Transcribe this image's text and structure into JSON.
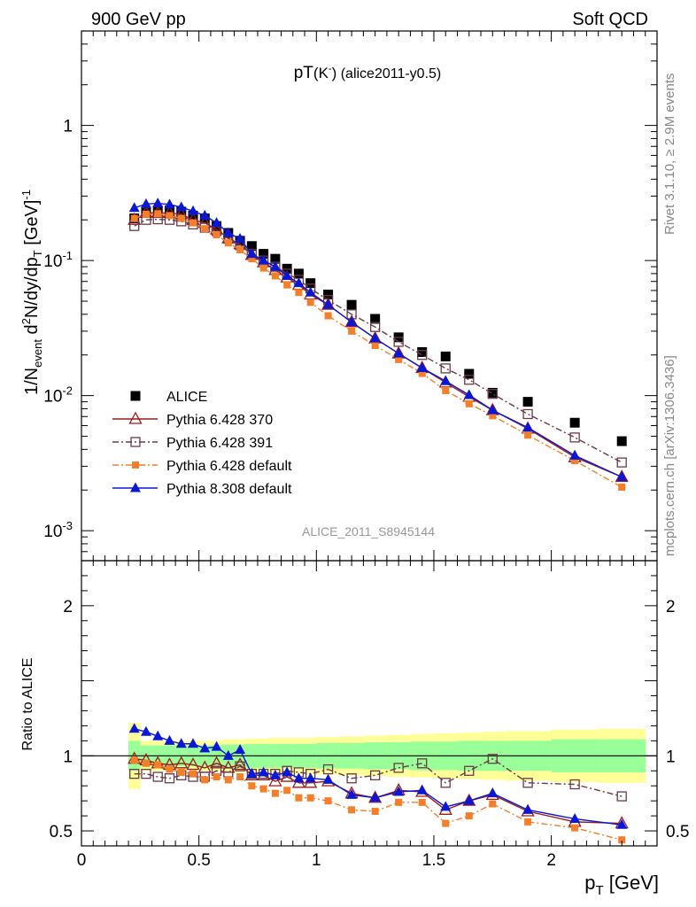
{
  "header": {
    "left": "900 GeV pp",
    "right": "Soft QCD",
    "plot_title": "pT(K-) (alice2011-y0.5)"
  },
  "side_text": {
    "rivet": "Rivet 3.1.10, ≥ 2.9M events",
    "mcplots": "mcplots.cern.ch [arXiv:1306.3436]"
  },
  "watermark": "ALICE_2011_S8945144",
  "colors": {
    "ALICE": "#000000",
    "p370": "#9e1b1b",
    "p391": "#6b3a4a",
    "p6def": "#f47f2a",
    "p8def": "#0a18d6",
    "band_inner": "#99ff99",
    "band_outer": "#ffff99"
  },
  "chart_data": [
    {
      "type": "scatter",
      "title": "pT(K-) (alice2011-y0.5)",
      "xlabel": "pT [GeV]",
      "ylabel": "1/Nevent d2N/dy/dpT [GeV]-1",
      "yscale": "log",
      "xlim": [
        0,
        2.45
      ],
      "ylim": [
        0.0006,
        5
      ],
      "y_ticks": [
        "10^-3",
        "10^-2",
        "10^-1",
        "1"
      ],
      "legend_position": "bottom-left",
      "x": [
        0.225,
        0.275,
        0.325,
        0.375,
        0.425,
        0.475,
        0.525,
        0.575,
        0.625,
        0.675,
        0.725,
        0.775,
        0.825,
        0.875,
        0.925,
        0.975,
        1.05,
        1.15,
        1.25,
        1.35,
        1.45,
        1.55,
        1.65,
        1.75,
        1.9,
        2.1,
        2.3
      ],
      "series": [
        {
          "name": "ALICE",
          "key": "ALICE",
          "marker": "square-filled",
          "line": "none",
          "values": [
            0.205,
            0.23,
            0.235,
            0.235,
            0.23,
            0.215,
            0.205,
            0.18,
            0.16,
            0.14,
            0.128,
            0.112,
            0.103,
            0.087,
            0.08,
            0.068,
            0.056,
            0.047,
            0.037,
            0.027,
            0.021,
            0.0195,
            0.0145,
            0.0105,
            0.009,
            0.0063,
            0.0046
          ]
        },
        {
          "name": "Pythia 6.428 370",
          "key": "p370",
          "marker": "triangle-open",
          "line": "solid",
          "values": [
            0.2,
            0.225,
            0.225,
            0.225,
            0.22,
            0.2,
            0.19,
            0.17,
            0.146,
            0.132,
            0.11,
            0.097,
            0.085,
            0.075,
            0.066,
            0.056,
            0.047,
            0.035,
            0.0265,
            0.0205,
            0.016,
            0.0125,
            0.0098,
            0.0078,
            0.0057,
            0.0035,
            0.0025
          ]
        },
        {
          "name": "Pythia 6.428 391",
          "key": "p391",
          "marker": "square-open",
          "line": "dashdot",
          "values": [
            0.18,
            0.2,
            0.202,
            0.2,
            0.195,
            0.185,
            0.175,
            0.165,
            0.145,
            0.13,
            0.112,
            0.1,
            0.09,
            0.08,
            0.072,
            0.062,
            0.051,
            0.04,
            0.0322,
            0.025,
            0.02,
            0.0159,
            0.0131,
            0.0103,
            0.0073,
            0.0049,
            0.0032
          ]
        },
        {
          "name": "Pythia 6.428 default",
          "key": "p6def",
          "marker": "square-filled-small",
          "line": "dashdot",
          "values": [
            0.205,
            0.22,
            0.222,
            0.215,
            0.205,
            0.19,
            0.172,
            0.155,
            0.135,
            0.12,
            0.103,
            0.088,
            0.077,
            0.066,
            0.058,
            0.049,
            0.039,
            0.03,
            0.0235,
            0.0185,
            0.0146,
            0.0109,
            0.0087,
            0.0071,
            0.0051,
            0.0033,
            0.0021
          ]
        },
        {
          "name": "Pythia 8.308 default",
          "key": "p8def",
          "marker": "triangle-filled",
          "line": "solid",
          "values": [
            0.245,
            0.262,
            0.265,
            0.26,
            0.248,
            0.232,
            0.215,
            0.19,
            0.16,
            0.145,
            0.112,
            0.1,
            0.09,
            0.077,
            0.068,
            0.058,
            0.047,
            0.035,
            0.0265,
            0.0205,
            0.016,
            0.0128,
            0.0101,
            0.0078,
            0.0058,
            0.0036,
            0.0025
          ]
        }
      ]
    },
    {
      "type": "scatter",
      "xlabel": "pT [GeV]",
      "ylabel": "Ratio to ALICE",
      "xlim": [
        0,
        2.45
      ],
      "ylim": [
        0.4,
        2.3
      ],
      "x_ticks": [
        0,
        0.5,
        1,
        1.5,
        2
      ],
      "y_ticks": [
        0.5,
        1,
        2
      ],
      "reference_line": 1,
      "bands": {
        "x_edges": [
          0.2,
          0.25,
          0.3,
          0.35,
          0.4,
          0.45,
          0.5,
          0.55,
          0.6,
          0.65,
          0.7,
          0.75,
          0.8,
          0.85,
          0.9,
          0.95,
          1.0,
          1.1,
          1.2,
          1.3,
          1.4,
          1.5,
          1.6,
          1.7,
          1.8,
          2.0,
          2.2,
          2.4
        ],
        "inner": [
          0.1,
          0.07,
          0.07,
          0.07,
          0.07,
          0.07,
          0.07,
          0.07,
          0.075,
          0.075,
          0.08,
          0.08,
          0.08,
          0.08,
          0.08,
          0.08,
          0.085,
          0.085,
          0.09,
          0.09,
          0.095,
          0.095,
          0.1,
          0.1,
          0.1,
          0.11,
          0.11
        ],
        "outer": [
          0.22,
          0.1,
          0.1,
          0.1,
          0.1,
          0.1,
          0.1,
          0.1,
          0.11,
          0.11,
          0.115,
          0.115,
          0.12,
          0.12,
          0.12,
          0.12,
          0.125,
          0.13,
          0.135,
          0.14,
          0.145,
          0.15,
          0.155,
          0.16,
          0.165,
          0.175,
          0.18
        ]
      },
      "series": [
        {
          "name": "Pythia 6.428 370",
          "key": "p370",
          "marker": "triangle-open",
          "line": "solid",
          "values": [
            0.98,
            0.97,
            0.95,
            0.94,
            0.95,
            0.94,
            0.92,
            0.95,
            0.92,
            0.94,
            0.87,
            0.87,
            0.83,
            0.86,
            0.82,
            0.82,
            0.83,
            0.75,
            0.72,
            0.77,
            0.76,
            0.64,
            0.7,
            0.74,
            0.63,
            0.56,
            0.55
          ]
        },
        {
          "name": "Pythia 6.428 391",
          "key": "p391",
          "marker": "square-open",
          "line": "dashdot",
          "values": [
            0.88,
            0.88,
            0.86,
            0.85,
            0.87,
            0.86,
            0.86,
            0.9,
            0.89,
            0.93,
            0.88,
            0.88,
            0.88,
            0.9,
            0.89,
            0.88,
            0.91,
            0.85,
            0.87,
            0.92,
            0.95,
            0.82,
            0.9,
            0.98,
            0.82,
            0.81,
            0.73
          ]
        },
        {
          "name": "Pythia 6.428 default",
          "key": "p6def",
          "marker": "square-filled-small",
          "line": "dashdot",
          "values": [
            0.97,
            0.95,
            0.94,
            0.91,
            0.89,
            0.88,
            0.84,
            0.86,
            0.84,
            0.86,
            0.8,
            0.78,
            0.75,
            0.77,
            0.72,
            0.72,
            0.7,
            0.64,
            0.63,
            0.69,
            0.69,
            0.55,
            0.6,
            0.68,
            0.56,
            0.52,
            0.44
          ]
        },
        {
          "name": "Pythia 8.308 default",
          "key": "p8def",
          "marker": "triangle-filled",
          "line": "solid",
          "values": [
            1.18,
            1.16,
            1.13,
            1.1,
            1.08,
            1.08,
            1.05,
            1.06,
            1.0,
            1.04,
            0.88,
            0.89,
            0.87,
            0.89,
            0.85,
            0.85,
            0.84,
            0.74,
            0.72,
            0.76,
            0.77,
            0.66,
            0.7,
            0.75,
            0.64,
            0.58,
            0.54
          ]
        }
      ]
    }
  ]
}
